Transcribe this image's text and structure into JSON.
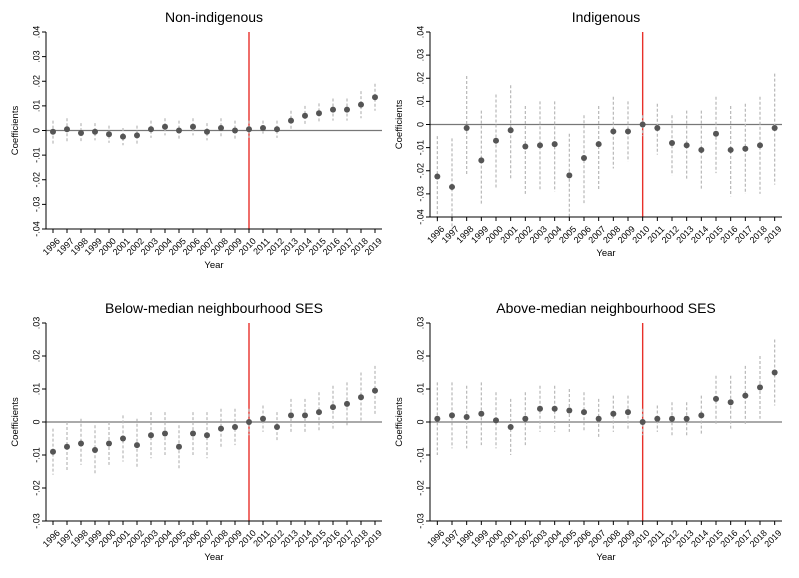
{
  "chart_data": [
    {
      "type": "scatter",
      "title": "Non-indigenous",
      "xlabel": "Year",
      "ylabel": "Coefficients",
      "ylim": [
        -0.04,
        0.04
      ],
      "yticks": [
        ".04",
        ".03",
        ".02",
        ".01",
        "0",
        "-.01",
        "-.02",
        "-.03",
        "-.04"
      ],
      "ytick_values": [
        0.04,
        0.03,
        0.02,
        0.01,
        0,
        -0.01,
        -0.02,
        -0.03,
        -0.04
      ],
      "x": [
        "1996",
        "1997",
        "1998",
        "1999",
        "2000",
        "2001",
        "2002",
        "2003",
        "2004",
        "2005",
        "2006",
        "2007",
        "2008",
        "2009",
        "2010",
        "2011",
        "2012",
        "2013",
        "2014",
        "2015",
        "2016",
        "2017",
        "2018",
        "2019"
      ],
      "y": [
        -0.0005,
        0.0005,
        -0.001,
        -0.0005,
        -0.0015,
        -0.0025,
        -0.002,
        0.0005,
        0.0015,
        0.0,
        0.0015,
        -0.0005,
        0.001,
        0.0,
        0.0005,
        0.001,
        0.0005,
        0.004,
        0.006,
        0.007,
        0.0085,
        0.0085,
        0.0105,
        0.0135
      ],
      "ci_low": [
        -0.006,
        -0.005,
        -0.005,
        -0.004,
        -0.005,
        -0.006,
        -0.006,
        -0.003,
        -0.002,
        -0.004,
        -0.002,
        -0.004,
        -0.003,
        -0.004,
        -0.003,
        -0.002,
        -0.003,
        0.0,
        0.002,
        0.003,
        0.004,
        0.004,
        0.005,
        0.008
      ],
      "ci_high": [
        0.004,
        0.005,
        0.003,
        0.003,
        0.002,
        0.001,
        0.002,
        0.004,
        0.005,
        0.004,
        0.005,
        0.003,
        0.005,
        0.004,
        0.004,
        0.004,
        0.004,
        0.008,
        0.01,
        0.011,
        0.013,
        0.013,
        0.016,
        0.019
      ],
      "vline": "2010",
      "hline": 0,
      "grid": false
    },
    {
      "type": "scatter",
      "title": "Indigenous",
      "xlabel": "Year",
      "ylabel": "Coefficients",
      "ylim": [
        -0.04,
        0.04
      ],
      "yticks": [
        ".04",
        ".03",
        ".02",
        ".01",
        "0",
        "-.01",
        "-.02",
        "-.03",
        "-.04"
      ],
      "ytick_values": [
        0.04,
        0.03,
        0.02,
        0.01,
        0,
        -0.01,
        -0.02,
        -0.03,
        -0.04
      ],
      "x": [
        "1996",
        "1997",
        "1998",
        "1999",
        "2000",
        "2001",
        "2002",
        "2003",
        "2004",
        "2005",
        "2006",
        "2007",
        "2008",
        "2009",
        "2010",
        "2011",
        "2012",
        "2013",
        "2014",
        "2015",
        "2016",
        "2017",
        "2018",
        "2019"
      ],
      "y": [
        -0.0225,
        -0.027,
        -0.0015,
        -0.0155,
        -0.007,
        -0.0025,
        -0.0095,
        -0.009,
        -0.0085,
        -0.022,
        -0.0145,
        -0.0085,
        -0.003,
        -0.003,
        0.0,
        -0.0015,
        -0.008,
        -0.009,
        -0.011,
        -0.004,
        -0.011,
        -0.0105,
        -0.009,
        -0.0015
      ],
      "ci_low": [
        -0.042,
        -0.046,
        -0.022,
        -0.035,
        -0.028,
        -0.024,
        -0.03,
        -0.028,
        -0.029,
        -0.041,
        -0.034,
        -0.028,
        -0.019,
        -0.016,
        -0.005,
        -0.013,
        -0.022,
        -0.024,
        -0.028,
        -0.021,
        -0.031,
        -0.03,
        -0.03,
        -0.026
      ],
      "ci_high": [
        -0.005,
        -0.006,
        0.021,
        0.006,
        0.013,
        0.017,
        0.008,
        0.01,
        0.01,
        -0.004,
        0.004,
        0.008,
        0.012,
        0.01,
        0.004,
        0.009,
        0.004,
        0.006,
        0.006,
        0.012,
        0.008,
        0.009,
        0.012,
        0.022
      ],
      "vline": "2010",
      "hline": 0,
      "grid": false
    },
    {
      "type": "scatter",
      "title": "Below-median neighbourhood SES",
      "xlabel": "Year",
      "ylabel": "Coefficients",
      "ylim": [
        -0.03,
        0.03
      ],
      "yticks": [
        ".03",
        ".02",
        ".01",
        "0",
        "-.01",
        "-.02",
        "-.03"
      ],
      "ytick_values": [
        0.03,
        0.02,
        0.01,
        0,
        -0.01,
        -0.02,
        -0.03
      ],
      "x": [
        "1996",
        "1997",
        "1998",
        "1999",
        "2000",
        "2001",
        "2002",
        "2003",
        "2004",
        "2005",
        "2006",
        "2007",
        "2008",
        "2009",
        "2010",
        "2011",
        "2012",
        "2013",
        "2014",
        "2015",
        "2016",
        "2017",
        "2018",
        "2019"
      ],
      "y": [
        -0.009,
        -0.0075,
        -0.0065,
        -0.0085,
        -0.0065,
        -0.005,
        -0.007,
        -0.004,
        -0.0035,
        -0.0075,
        -0.0035,
        -0.004,
        -0.002,
        -0.0015,
        0.0,
        0.001,
        -0.0015,
        0.002,
        0.002,
        0.003,
        0.0045,
        0.0055,
        0.0075,
        0.0095
      ],
      "ci_low": [
        -0.016,
        -0.015,
        -0.013,
        -0.016,
        -0.013,
        -0.012,
        -0.014,
        -0.011,
        -0.01,
        -0.014,
        -0.01,
        -0.011,
        -0.008,
        -0.007,
        -0.004,
        -0.003,
        -0.006,
        -0.003,
        -0.003,
        -0.003,
        -0.002,
        -0.001,
        0.0,
        0.002
      ],
      "ci_high": [
        -0.002,
        0.0,
        0.001,
        -0.001,
        0.0,
        0.002,
        0.001,
        0.003,
        0.003,
        -0.001,
        0.003,
        0.003,
        0.004,
        0.004,
        0.004,
        0.005,
        0.003,
        0.007,
        0.007,
        0.009,
        0.011,
        0.012,
        0.015,
        0.017
      ],
      "vline": "2010",
      "hline": 0,
      "grid": false
    },
    {
      "type": "scatter",
      "title": "Above-median neighbourhood SES",
      "xlabel": "Year",
      "ylabel": "Coefficients",
      "ylim": [
        -0.03,
        0.03
      ],
      "yticks": [
        ".03",
        ".02",
        ".01",
        "0",
        "-.01",
        "-.02",
        "-.03"
      ],
      "ytick_values": [
        0.03,
        0.02,
        0.01,
        0,
        -0.01,
        -0.02,
        -0.03
      ],
      "x": [
        "1996",
        "1997",
        "1998",
        "1999",
        "2000",
        "2001",
        "2002",
        "2003",
        "2004",
        "2005",
        "2006",
        "2007",
        "2008",
        "2009",
        "2010",
        "2011",
        "2012",
        "2013",
        "2014",
        "2015",
        "2016",
        "2017",
        "2018",
        "2019"
      ],
      "y": [
        0.001,
        0.002,
        0.0015,
        0.0025,
        0.0005,
        -0.0015,
        0.001,
        0.004,
        0.004,
        0.0035,
        0.003,
        0.001,
        0.0025,
        0.003,
        0.0,
        0.001,
        0.001,
        0.001,
        0.002,
        0.007,
        0.006,
        0.008,
        0.0105,
        0.015
      ],
      "ci_low": [
        -0.01,
        -0.008,
        -0.008,
        -0.007,
        -0.008,
        -0.01,
        -0.007,
        -0.003,
        -0.003,
        -0.003,
        -0.003,
        -0.005,
        -0.003,
        -0.002,
        -0.004,
        -0.003,
        -0.004,
        -0.004,
        -0.004,
        -0.001,
        -0.002,
        -0.001,
        0.001,
        0.005
      ],
      "ci_high": [
        0.012,
        0.012,
        0.011,
        0.012,
        0.009,
        0.007,
        0.009,
        0.011,
        0.011,
        0.01,
        0.009,
        0.007,
        0.008,
        0.008,
        0.004,
        0.005,
        0.006,
        0.006,
        0.008,
        0.014,
        0.014,
        0.017,
        0.02,
        0.025
      ],
      "vline": "2010",
      "hline": 0,
      "grid": false
    }
  ],
  "colors": {
    "point": "#555555",
    "ci": "#b8b8b8",
    "zero_line": "#777777",
    "vline": "#e8302a",
    "axis": "#000000"
  }
}
